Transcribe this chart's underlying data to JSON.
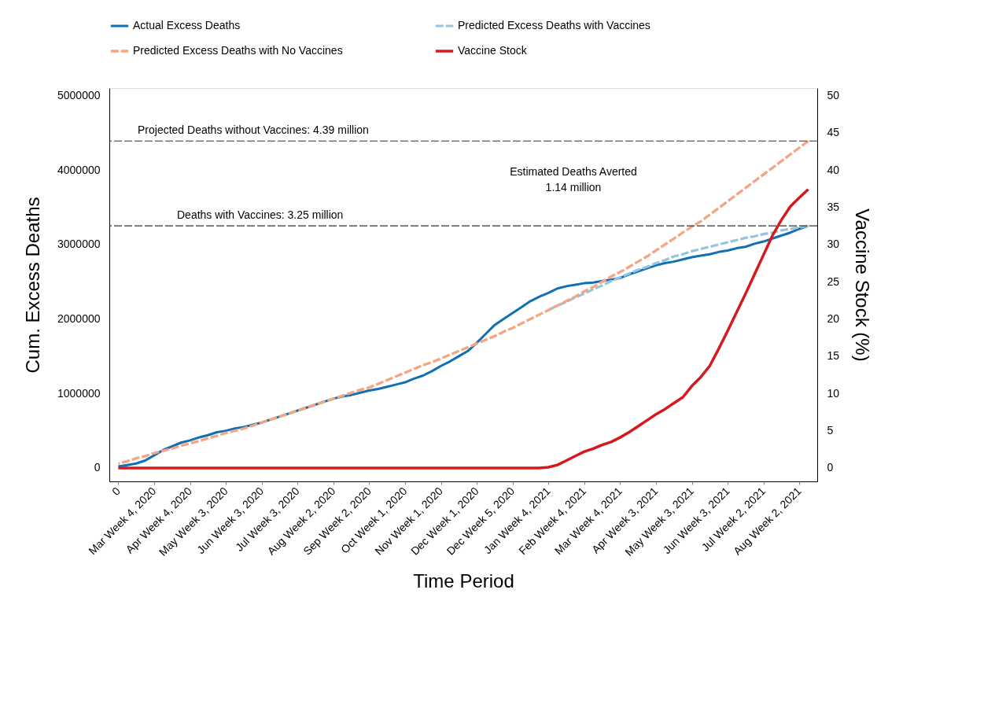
{
  "chart_data": {
    "type": "line",
    "xlabel": "Time Period",
    "ylabel": "Cum. Excess Deaths",
    "y2label": "Vaccine Stock (%)",
    "categories": [
      "0",
      null,
      null,
      null,
      "Mar Week 4, 2020",
      null,
      null,
      null,
      "Apr Week 4, 2020",
      null,
      null,
      null,
      "May Week 3, 2020",
      null,
      null,
      null,
      "Jun Week 3, 2020",
      null,
      null,
      null,
      "Jul Week 3, 2020",
      null,
      null,
      null,
      "Aug Week 2, 2020",
      null,
      null,
      null,
      "Sep Week 2, 2020",
      null,
      null,
      null,
      "Oct Week 1, 2020",
      null,
      null,
      null,
      "Nov Week 1, 2020",
      null,
      null,
      null,
      "Dec Week 1, 2020",
      null,
      null,
      null,
      "Dec Week 5, 2020",
      null,
      null,
      null,
      "Jan Week 4, 2021",
      null,
      null,
      null,
      "Feb Week 4, 2021",
      null,
      null,
      null,
      "Mar Week 4, 2021",
      null,
      null,
      null,
      "Apr Week 3, 2021",
      null,
      null,
      null,
      "May Week 3, 2021",
      null,
      null,
      null,
      "Jun Week 3, 2021",
      null,
      null,
      null,
      "Jul Week 2, 2021",
      null,
      null,
      null,
      "Aug Week 2, 2021",
      null
    ],
    "ylim": [
      -180000,
      5100000
    ],
    "yticks": [
      0,
      1000000,
      2000000,
      3000000,
      4000000,
      5000000
    ],
    "y2lim": [
      -1.8,
      51
    ],
    "y2ticks": [
      0,
      5,
      10,
      15,
      20,
      25,
      30,
      35,
      40,
      45,
      50
    ],
    "grid": false,
    "legend": "top",
    "marker": "none",
    "series": [
      {
        "name": "Actual Excess Deaths",
        "color": "#1170b5",
        "line_style": "solid",
        "axis": "y",
        "values": [
          20000,
          40000,
          60000,
          100000,
          170000,
          240000,
          290000,
          340000,
          370000,
          410000,
          440000,
          480000,
          500000,
          530000,
          550000,
          580000,
          610000,
          650000,
          690000,
          730000,
          770000,
          810000,
          850000,
          890000,
          930000,
          960000,
          980000,
          1010000,
          1040000,
          1060000,
          1090000,
          1120000,
          1150000,
          1200000,
          1240000,
          1300000,
          1370000,
          1430000,
          1500000,
          1570000,
          1680000,
          1800000,
          1920000,
          2000000,
          2080000,
          2160000,
          2240000,
          2300000,
          2350000,
          2410000,
          2440000,
          2460000,
          2480000,
          2490000,
          2510000,
          2530000,
          2550000,
          2600000,
          2640000,
          2680000,
          2720000,
          2750000,
          2770000,
          2800000,
          2830000,
          2850000,
          2870000,
          2900000,
          2920000,
          2950000,
          2970000,
          3010000,
          3040000,
          3080000,
          3120000,
          3160000,
          3210000,
          3250000
        ]
      },
      {
        "name": "Predicted Excess Deaths with Vaccines",
        "color": "#92c5de",
        "line_style": "dashed",
        "axis": "y",
        "values": [
          null,
          null,
          null,
          null,
          null,
          null,
          null,
          null,
          null,
          null,
          null,
          null,
          null,
          null,
          null,
          null,
          null,
          null,
          null,
          null,
          null,
          null,
          null,
          null,
          null,
          null,
          null,
          null,
          null,
          null,
          null,
          null,
          null,
          null,
          null,
          null,
          null,
          null,
          null,
          null,
          null,
          null,
          null,
          null,
          null,
          null,
          null,
          null,
          2120000,
          2180000,
          2230000,
          2290000,
          2340000,
          2400000,
          2450000,
          2510000,
          2560000,
          2610000,
          2660000,
          2700000,
          2750000,
          2790000,
          2840000,
          2870000,
          2910000,
          2940000,
          2970000,
          3000000,
          3030000,
          3060000,
          3090000,
          3110000,
          3140000,
          3160000,
          3190000,
          3210000,
          3230000,
          3250000
        ]
      },
      {
        "name": "Predicted Excess Deaths with No Vaccines",
        "color": "#f4a582",
        "line_style": "dashed",
        "axis": "y",
        "values": [
          60000,
          90000,
          130000,
          160000,
          200000,
          230000,
          260000,
          300000,
          330000,
          360000,
          400000,
          430000,
          470000,
          500000,
          530000,
          570000,
          610000,
          650000,
          690000,
          730000,
          770000,
          810000,
          850000,
          890000,
          930000,
          970000,
          1010000,
          1050000,
          1080000,
          1130000,
          1180000,
          1230000,
          1280000,
          1330000,
          1380000,
          1420000,
          1470000,
          1520000,
          1570000,
          1620000,
          1670000,
          1720000,
          1770000,
          1830000,
          1880000,
          1940000,
          2000000,
          2060000,
          2120000,
          2180000,
          2240000,
          2300000,
          2370000,
          2430000,
          2500000,
          2570000,
          2630000,
          2700000,
          2770000,
          2840000,
          2920000,
          3000000,
          3080000,
          3160000,
          3240000,
          3310000,
          3400000,
          3490000,
          3580000,
          3670000,
          3760000,
          3850000,
          3940000,
          4030000,
          4120000,
          4210000,
          4300000,
          4390000
        ]
      },
      {
        "name": "Vaccine Stock",
        "color": "#d7191c",
        "line_style": "solid",
        "axis": "y2",
        "values": [
          0,
          0,
          0,
          0,
          0,
          0,
          0,
          0,
          0,
          0,
          0,
          0,
          0,
          0,
          0,
          0,
          0,
          0,
          0,
          0,
          0,
          0,
          0,
          0,
          0,
          0,
          0,
          0,
          0,
          0,
          0,
          0,
          0,
          0,
          0,
          0,
          0,
          0,
          0,
          0,
          0,
          0,
          0,
          0,
          0,
          0,
          0,
          0,
          0.1,
          0.4,
          1.0,
          1.6,
          2.2,
          2.6,
          3.1,
          3.5,
          4.1,
          4.8,
          5.6,
          6.4,
          7.2,
          7.9,
          8.7,
          9.5,
          11.0,
          12.2,
          13.7,
          16.0,
          18.4,
          20.9,
          23.4,
          26.0,
          28.6,
          31.2,
          33.3,
          35.1,
          36.3,
          37.4
        ]
      }
    ],
    "ref_lines": [
      {
        "axis": "y",
        "value": 4390000,
        "label": "Projected Deaths without Vaccines: 4.39 million",
        "color": "#333333",
        "line_style": "dashed"
      },
      {
        "axis": "y",
        "value": 3250000,
        "label": "Deaths with Vaccines: 3.25 million",
        "color": "#333333",
        "line_style": "dashed"
      }
    ],
    "annotations": [
      "Estimated Deaths Averted\n1.14 million"
    ]
  }
}
